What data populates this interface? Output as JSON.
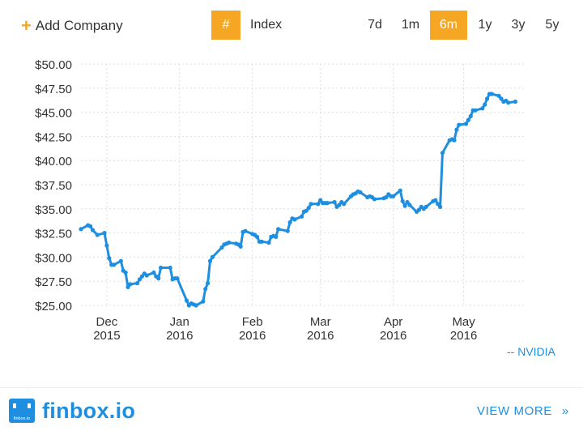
{
  "toolbar": {
    "add_company_label": "Add Company",
    "hash_label": "#",
    "index_label": "Index",
    "ranges": [
      "7d",
      "1m",
      "6m",
      "1y",
      "3y",
      "5y"
    ],
    "active_range": "6m",
    "accent_color": "#f5a623"
  },
  "chart_data": {
    "type": "line",
    "title": "",
    "xlabel": "",
    "ylabel": "",
    "ylim": [
      25,
      50
    ],
    "yticks": [
      "$50.00",
      "$47.50",
      "$45.00",
      "$42.50",
      "$40.00",
      "$37.50",
      "$35.00",
      "$32.50",
      "$30.00",
      "$27.50",
      "$25.00"
    ],
    "ytick_values": [
      50,
      47.5,
      45,
      42.5,
      40,
      37.5,
      35,
      32.5,
      30,
      27.5,
      25
    ],
    "xticks": [
      {
        "month": "Dec",
        "year": "2015",
        "date": "2015-12-01"
      },
      {
        "month": "Jan",
        "year": "2016",
        "date": "2016-01-01"
      },
      {
        "month": "Feb",
        "year": "2016",
        "date": "2016-02-01"
      },
      {
        "month": "Mar",
        "year": "2016",
        "date": "2016-03-01"
      },
      {
        "month": "Apr",
        "year": "2016",
        "date": "2016-04-01"
      },
      {
        "month": "May",
        "year": "2016",
        "date": "2016-05-01"
      }
    ],
    "xlim": [
      "2015-11-20",
      "2016-05-27"
    ],
    "grid": true,
    "series_color": "#1e8fe0",
    "legend_label": "-- NVIDIA",
    "series": [
      {
        "name": "NVIDIA",
        "x": [
          "2015-11-20",
          "2015-11-23",
          "2015-11-24",
          "2015-11-25",
          "2015-11-27",
          "2015-11-30",
          "2015-12-01",
          "2015-12-02",
          "2015-12-03",
          "2015-12-04",
          "2015-12-07",
          "2015-12-08",
          "2015-12-09",
          "2015-12-10",
          "2015-12-11",
          "2015-12-14",
          "2015-12-15",
          "2015-12-16",
          "2015-12-17",
          "2015-12-18",
          "2015-12-21",
          "2015-12-22",
          "2015-12-23",
          "2015-12-24",
          "2015-12-28",
          "2015-12-29",
          "2015-12-30",
          "2015-12-31",
          "2016-01-04",
          "2016-01-05",
          "2016-01-06",
          "2016-01-07",
          "2016-01-08",
          "2016-01-11",
          "2016-01-12",
          "2016-01-13",
          "2016-01-14",
          "2016-01-15",
          "2016-01-19",
          "2016-01-20",
          "2016-01-21",
          "2016-01-22",
          "2016-01-25",
          "2016-01-26",
          "2016-01-27",
          "2016-01-28",
          "2016-01-29",
          "2016-02-01",
          "2016-02-02",
          "2016-02-03",
          "2016-02-04",
          "2016-02-05",
          "2016-02-08",
          "2016-02-09",
          "2016-02-10",
          "2016-02-11",
          "2016-02-12",
          "2016-02-16",
          "2016-02-17",
          "2016-02-18",
          "2016-02-19",
          "2016-02-22",
          "2016-02-23",
          "2016-02-24",
          "2016-02-25",
          "2016-02-26",
          "2016-02-29",
          "2016-03-01",
          "2016-03-02",
          "2016-03-03",
          "2016-03-04",
          "2016-03-07",
          "2016-03-08",
          "2016-03-09",
          "2016-03-10",
          "2016-03-11",
          "2016-03-14",
          "2016-03-15",
          "2016-03-16",
          "2016-03-17",
          "2016-03-18",
          "2016-03-21",
          "2016-03-22",
          "2016-03-23",
          "2016-03-24",
          "2016-03-28",
          "2016-03-29",
          "2016-03-30",
          "2016-03-31",
          "2016-04-01",
          "2016-04-04",
          "2016-04-05",
          "2016-04-06",
          "2016-04-07",
          "2016-04-08",
          "2016-04-11",
          "2016-04-12",
          "2016-04-13",
          "2016-04-14",
          "2016-04-15",
          "2016-04-18",
          "2016-04-19",
          "2016-04-20",
          "2016-04-21",
          "2016-04-22",
          "2016-04-25",
          "2016-04-26",
          "2016-04-27",
          "2016-04-28",
          "2016-04-29",
          "2016-05-02",
          "2016-05-03",
          "2016-05-04",
          "2016-05-05",
          "2016-05-06",
          "2016-05-09",
          "2016-05-10",
          "2016-05-11",
          "2016-05-12",
          "2016-05-13",
          "2016-05-16",
          "2016-05-17",
          "2016-05-18",
          "2016-05-19",
          "2016-05-20",
          "2016-05-23"
        ],
        "values": [
          32.9,
          33.3,
          33.2,
          32.8,
          32.3,
          32.5,
          31.2,
          29.9,
          29.2,
          29.2,
          29.6,
          28.6,
          28.4,
          26.9,
          27.2,
          27.3,
          27.7,
          28.0,
          28.3,
          28.1,
          28.4,
          28.0,
          27.8,
          28.9,
          28.9,
          27.7,
          27.8,
          27.8,
          25.5,
          25.0,
          25.2,
          25.1,
          25.0,
          25.4,
          26.7,
          27.3,
          29.6,
          30.0,
          31.0,
          31.3,
          31.4,
          31.5,
          31.4,
          31.3,
          31.1,
          32.6,
          32.7,
          32.4,
          32.3,
          32.1,
          31.6,
          31.6,
          31.5,
          32.1,
          32.2,
          32.1,
          32.9,
          32.7,
          33.6,
          34.0,
          33.9,
          34.2,
          34.7,
          34.8,
          35.1,
          35.5,
          35.5,
          35.9,
          35.6,
          35.6,
          35.6,
          35.7,
          35.2,
          35.4,
          35.7,
          35.5,
          36.3,
          36.5,
          36.6,
          36.8,
          36.7,
          36.2,
          36.3,
          36.2,
          36.0,
          36.1,
          36.2,
          36.5,
          36.3,
          36.3,
          36.9,
          35.8,
          35.3,
          35.7,
          35.4,
          34.7,
          34.9,
          35.2,
          35.0,
          35.2,
          35.8,
          35.9,
          35.5,
          35.2,
          40.8,
          42.1,
          42.2,
          42.1,
          43.2,
          43.7,
          43.8,
          44.2,
          44.6,
          45.2,
          45.2,
          45.4,
          45.8,
          46.4,
          46.9,
          46.9,
          46.7,
          46.4,
          46.1,
          46.2,
          46.0,
          46.1
        ]
      }
    ]
  },
  "footer": {
    "brand_name": "finbox.io",
    "logo_caption": "finbox.io",
    "view_more_label": "VIEW MORE",
    "view_more_chevron": "»"
  }
}
